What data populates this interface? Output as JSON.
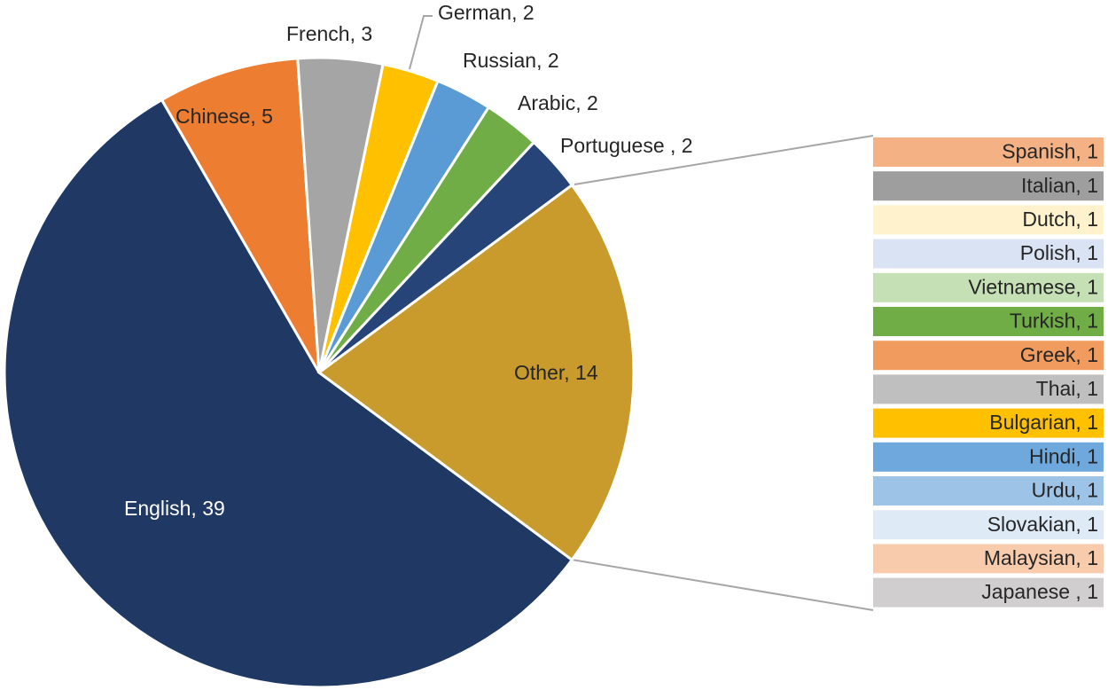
{
  "chart_data": {
    "type": "pie",
    "values": [
      39,
      5,
      3,
      2,
      2,
      2,
      2,
      14
    ],
    "value_labels": [
      "English, 39",
      "Chinese, 5",
      "French, 3",
      "German, 2",
      "Russian, 2",
      "Arabic, 2",
      "Portuguese , 2",
      "Other, 14"
    ],
    "colors": [
      "#203864",
      "#ED7D31",
      "#A5A5A5",
      "#FFC000",
      "#5B9BD5",
      "#70AD47",
      "#264478",
      "#C89B2C"
    ],
    "breakdown": {
      "values": [
        1,
        1,
        1,
        1,
        1,
        1,
        1,
        1,
        1,
        1,
        1,
        1,
        1,
        1
      ],
      "value_labels": [
        "Spanish, 1",
        "Italian, 1",
        "Dutch, 1",
        "Polish, 1",
        "Vietnamese, 1",
        "Turkish, 1",
        "Greek, 1",
        "Thai, 1",
        "Bulgarian, 1",
        "Hindi, 1",
        "Urdu, 1",
        "Slovakian, 1",
        "Malaysian, 1",
        "Japanese , 1"
      ],
      "colors": [
        "#F4B183",
        "#9E9E9E",
        "#FFF2CC",
        "#DAE3F3",
        "#C5E0B4",
        "#70AD47",
        "#F19C5E",
        "#BFBFBF",
        "#FFC000",
        "#6FA8DC",
        "#9DC3E6",
        "#DEEBF7",
        "#F8CBAD",
        "#D0CECE"
      ]
    }
  }
}
